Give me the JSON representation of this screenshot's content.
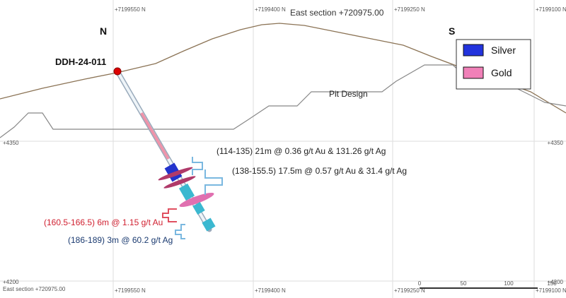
{
  "section": {
    "title": "East section +720975.00",
    "footer": "East section +720975.00"
  },
  "grid": {
    "northings": [
      "+7199550 N",
      "+7199400 N",
      "+7199250 N",
      "+7199100 N"
    ],
    "elevations": [
      "+4350",
      "+4200"
    ]
  },
  "orientation": {
    "north": "N",
    "south": "S"
  },
  "drillhole": {
    "id": "DDH-24-011"
  },
  "pit_label": "Pit Design",
  "legend": [
    {
      "label": "Silver"
    },
    {
      "label": "Gold"
    }
  ],
  "intercepts": [
    "(114-135) 21m @ 0.36 g/t Au & 131.26 g/t Ag",
    "(138-155.5) 17.5m @ 0.57 g/t Au & 31.4 g/t Ag",
    "(160.5-166.5) 6m @ 1.15 g/t Au",
    "(186-189) 3m @ 60.2 g/t Ag"
  ],
  "scale_bar": {
    "ticks": [
      "0",
      "50",
      "100",
      "150"
    ]
  }
}
